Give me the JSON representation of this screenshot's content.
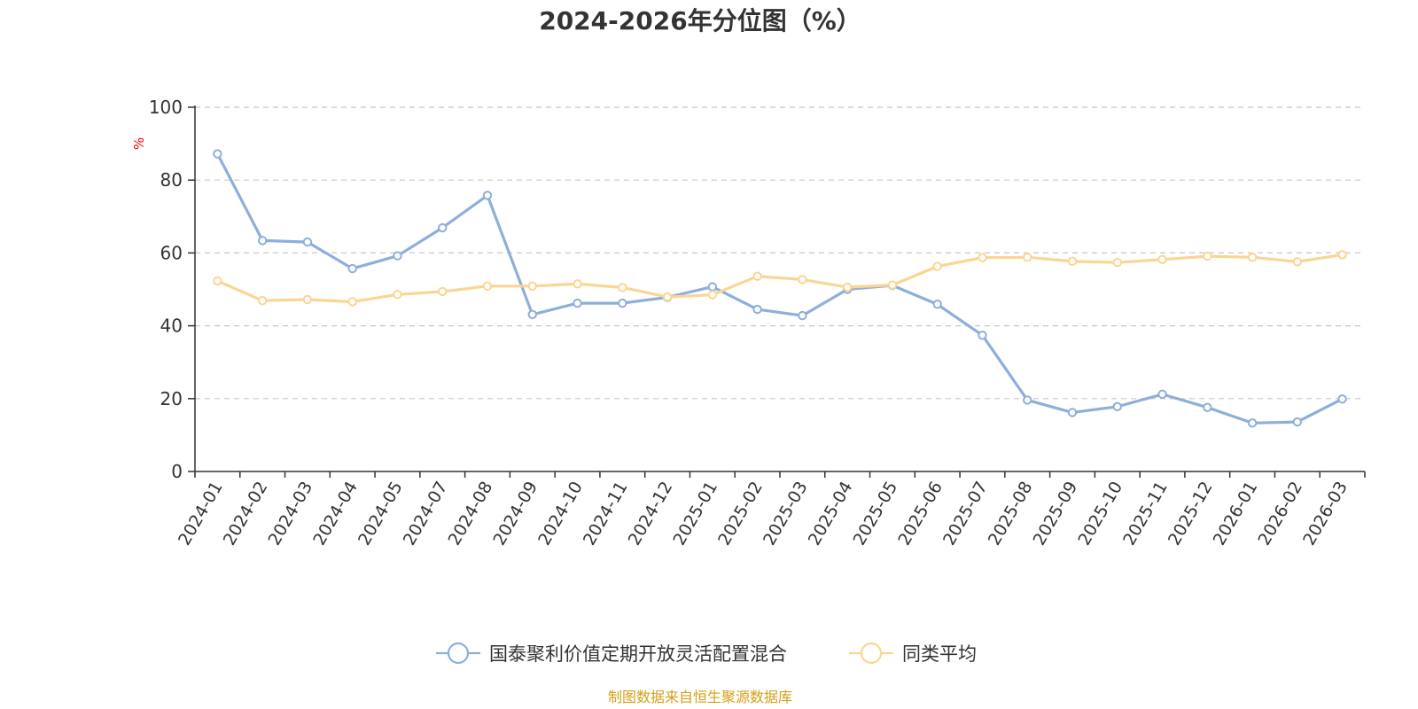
{
  "chart_data": {
    "type": "line",
    "title": "2024-2026年分位图（%）",
    "ylabel": "%",
    "ylim": [
      0,
      100
    ],
    "yticks": [
      0,
      20,
      40,
      60,
      80,
      100
    ],
    "grid": true,
    "legend_position": "bottom",
    "categories": [
      "2024-01",
      "2024-02",
      "2024-03",
      "2024-04",
      "2024-05",
      "2024-07",
      "2024-08",
      "2024-09",
      "2024-10",
      "2024-11",
      "2024-12",
      "2025-01",
      "2025-02",
      "2025-03",
      "2025-04",
      "2025-05",
      "2025-06",
      "2025-07",
      "2025-08",
      "2025-09",
      "2025-10",
      "2025-11",
      "2025-12",
      "2026-01",
      "2026-02",
      "2026-03"
    ],
    "series": [
      {
        "name": "国泰聚利价值定期开放灵活配置混合",
        "color": "#8eaedb",
        "values": [
          87.2,
          63.4,
          63.0,
          55.7,
          59.2,
          66.9,
          75.8,
          43.1,
          46.2,
          46.2,
          47.8,
          50.7,
          44.5,
          42.8,
          50.0,
          51.1,
          45.9,
          37.4,
          19.6,
          16.2,
          17.8,
          21.2,
          17.6,
          13.3,
          13.6,
          19.9
        ]
      },
      {
        "name": "同类平均",
        "color": "#fbd593",
        "values": [
          52.3,
          46.9,
          47.2,
          46.6,
          48.6,
          49.4,
          50.9,
          50.9,
          51.5,
          50.5,
          47.9,
          48.5,
          53.6,
          52.7,
          50.6,
          51.2,
          56.3,
          58.7,
          58.8,
          57.7,
          57.4,
          58.2,
          59.1,
          58.8,
          57.6,
          59.5
        ]
      }
    ]
  },
  "source": "制图数据来自恒生聚源数据库"
}
